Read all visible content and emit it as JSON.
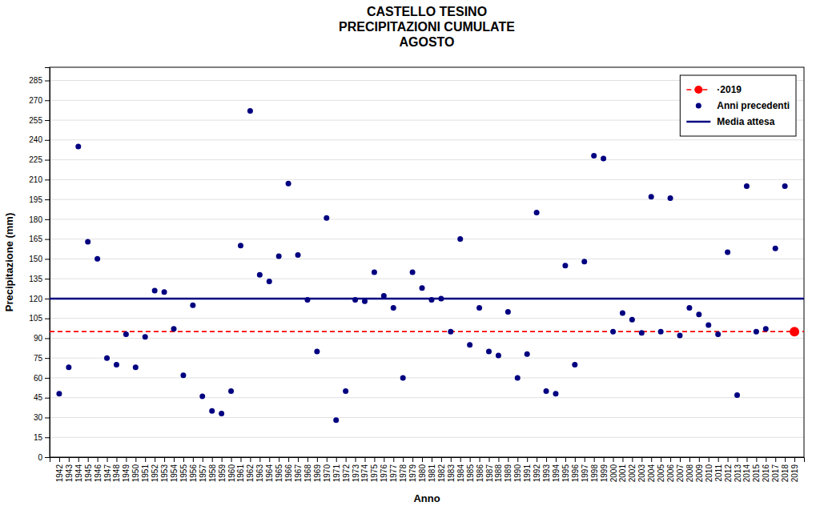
{
  "chart_data": {
    "type": "scatter",
    "title": "CASTELLO TESINO\nPRECIPITAZIONI CUMULATE\nAGOSTO",
    "x_label": "Anno",
    "y_label": "Precipitazione (mm)",
    "xlim": [
      1941,
      2020
    ],
    "xticks": [
      1942,
      1943,
      1944,
      1945,
      1946,
      1947,
      1948,
      1949,
      1950,
      1951,
      1952,
      1953,
      1954,
      1955,
      1956,
      1957,
      1958,
      1959,
      1960,
      1961,
      1962,
      1963,
      1964,
      1965,
      1966,
      1967,
      1968,
      1969,
      1970,
      1971,
      1972,
      1973,
      1974,
      1975,
      1976,
      1977,
      1978,
      1979,
      1980,
      1981,
      1982,
      1983,
      1984,
      1985,
      1986,
      1987,
      1988,
      1989,
      1990,
      1991,
      1992,
      1993,
      1994,
      1995,
      1996,
      1997,
      1998,
      1999,
      2000,
      2001,
      2002,
      2003,
      2004,
      2005,
      2006,
      2007,
      2008,
      2009,
      2010,
      2011,
      2012,
      2013,
      2014,
      2015,
      2016,
      2017,
      2018,
      2019
    ],
    "ylim": [
      0,
      295
    ],
    "yticks": [
      0,
      15,
      30,
      45,
      60,
      75,
      90,
      105,
      120,
      135,
      150,
      165,
      180,
      195,
      210,
      225,
      240,
      255,
      270,
      285
    ],
    "grid": true,
    "legend": "upper right",
    "series": [
      {
        "name": "·2019",
        "type": "scatter",
        "color": "#ff0000",
        "marker": "circle",
        "line_style": "dashed",
        "x": [
          2019
        ],
        "values": [
          95
        ]
      },
      {
        "name": "Anni precedenti",
        "type": "scatter",
        "color": "#000080",
        "marker": "circle",
        "x": [
          1942,
          1943,
          1944,
          1945,
          1946,
          1947,
          1948,
          1949,
          1950,
          1951,
          1952,
          1953,
          1954,
          1955,
          1956,
          1957,
          1958,
          1959,
          1960,
          1961,
          1962,
          1963,
          1964,
          1965,
          1966,
          1967,
          1968,
          1969,
          1970,
          1971,
          1972,
          1973,
          1974,
          1975,
          1976,
          1977,
          1978,
          1979,
          1980,
          1981,
          1982,
          1983,
          1984,
          1985,
          1986,
          1987,
          1988,
          1989,
          1990,
          1991,
          1992,
          1993,
          1994,
          1995,
          1996,
          1997,
          1998,
          1999,
          2000,
          2001,
          2002,
          2003,
          2004,
          2005,
          2006,
          2007,
          2008,
          2009,
          2010,
          2011,
          2012,
          2013,
          2014,
          2015,
          2016,
          2017,
          2018
        ],
        "values": [
          48,
          68,
          235,
          163,
          150,
          75,
          70,
          93,
          68,
          91,
          126,
          125,
          97,
          62,
          115,
          46,
          35,
          33,
          50,
          160,
          262,
          138,
          133,
          152,
          207,
          153,
          119,
          80,
          181,
          28,
          50,
          119,
          118,
          140,
          122,
          113,
          60,
          140,
          128,
          119,
          120,
          95,
          165,
          85,
          113,
          80,
          77,
          110,
          60,
          78,
          185,
          50,
          48,
          145,
          70,
          148,
          228,
          226,
          95,
          109,
          104,
          94,
          197,
          95,
          196,
          92,
          113,
          108,
          100,
          93,
          155,
          47,
          205,
          95,
          97,
          158,
          205
        ]
      },
      {
        "name": "Media attesa",
        "type": "hline",
        "color": "#000080",
        "line_style": "solid",
        "values": [
          120
        ]
      }
    ]
  }
}
